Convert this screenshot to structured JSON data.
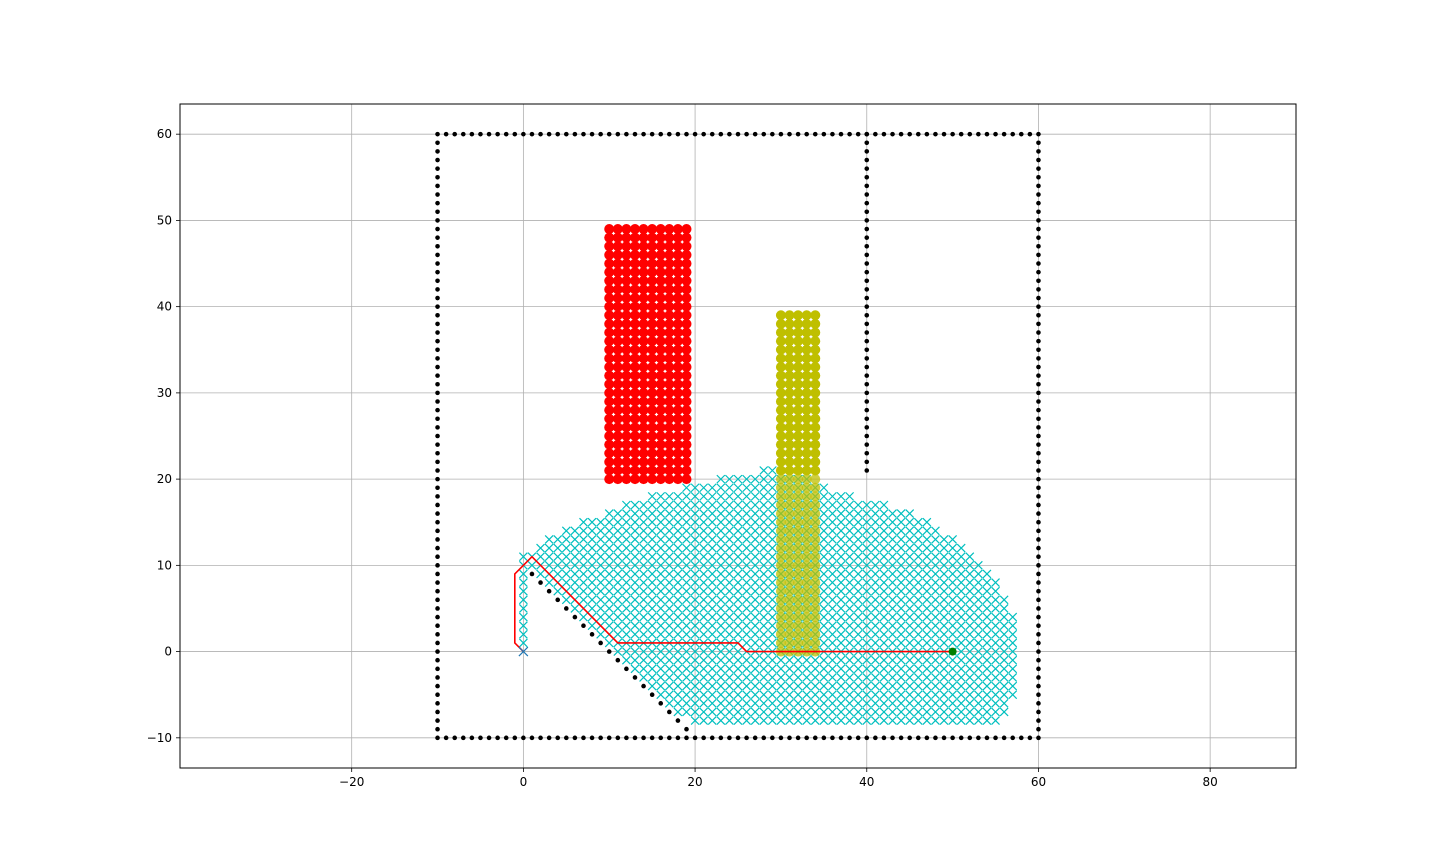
{
  "chart_data": {
    "type": "scatter",
    "title": "",
    "xlabel": "",
    "ylabel": "",
    "xlim": [
      -40,
      90
    ],
    "ylim": [
      -13.5,
      63.5
    ],
    "grid": true,
    "x_ticks": [
      -20,
      0,
      20,
      40,
      60,
      80
    ],
    "y_ticks": [
      -10,
      0,
      10,
      20,
      30,
      40,
      50,
      60
    ],
    "x_tick_labels": [
      "−20",
      "0",
      "20",
      "40",
      "60",
      "80"
    ],
    "y_tick_labels": [
      "−10",
      "0",
      "10",
      "20",
      "30",
      "40",
      "50",
      "60"
    ],
    "colors": {
      "obstacle": "#000000",
      "red_zone": "#ff0000",
      "yellow_zone": "#bfbf00",
      "explored": "#00bfbf",
      "path": "#ff0000",
      "start": "#1f77b4",
      "goal": "#008000",
      "grid": "#b0b0b0"
    },
    "obstacles": {
      "description_marker": "black dots",
      "boundary_box": {
        "x_min": -10,
        "x_max": 60,
        "y_min": -10,
        "y_max": 60
      },
      "inner_wall": {
        "x": 40,
        "y_from": 21,
        "y_to": 60
      },
      "diagonal_wall": {
        "from": [
          1,
          9
        ],
        "to": [
          19,
          -9
        ]
      }
    },
    "red_zone": {
      "x_from": 10,
      "x_to": 19,
      "y_from": 20,
      "y_to": 49
    },
    "yellow_zone": {
      "x_from": 30,
      "x_to": 34,
      "y_from": 0,
      "y_to": 39
    },
    "explored_region": {
      "marker": "x",
      "row_extents": [
        {
          "y": -8,
          "x_from": 20,
          "x_to": 55
        },
        {
          "y": -7,
          "x_from": 18,
          "x_to": 56
        },
        {
          "y": -6,
          "x_from": 17,
          "x_to": 56
        },
        {
          "y": -5,
          "x_from": 16,
          "x_to": 57
        },
        {
          "y": -4,
          "x_from": 15,
          "x_to": 57
        },
        {
          "y": -3,
          "x_from": 14,
          "x_to": 57
        },
        {
          "y": -2,
          "x_from": 13,
          "x_to": 57
        },
        {
          "y": -1,
          "x_from": 12,
          "x_to": 57
        },
        {
          "y": 0,
          "x_from": 11,
          "x_to": 57
        },
        {
          "y": 1,
          "x_from": 10,
          "x_to": 57
        },
        {
          "y": 2,
          "x_from": 9,
          "x_to": 57
        },
        {
          "y": 3,
          "x_from": 8,
          "x_to": 57
        },
        {
          "y": 4,
          "x_from": 7,
          "x_to": 57
        },
        {
          "y": 5,
          "x_from": 6,
          "x_to": 56
        },
        {
          "y": 6,
          "x_from": 5,
          "x_to": 56
        },
        {
          "y": 7,
          "x_from": 4,
          "x_to": 55
        },
        {
          "y": 8,
          "x_from": 3,
          "x_to": 55
        },
        {
          "y": 9,
          "x_from": 2,
          "x_to": 54
        },
        {
          "y": 10,
          "x_from": 1,
          "x_to": 53
        },
        {
          "y": 11,
          "x_from": 0,
          "x_to": 52
        },
        {
          "y": 12,
          "x_from": 2,
          "x_to": 51
        },
        {
          "y": 13,
          "x_from": 3,
          "x_to": 50
        },
        {
          "y": 14,
          "x_from": 5,
          "x_to": 48
        },
        {
          "y": 15,
          "x_from": 7,
          "x_to": 47
        },
        {
          "y": 16,
          "x_from": 10,
          "x_to": 45
        },
        {
          "y": 17,
          "x_from": 12,
          "x_to": 42
        },
        {
          "y": 18,
          "x_from": 15,
          "x_to": 38
        },
        {
          "y": 19,
          "x_from": 19,
          "x_to": 35
        },
        {
          "y": 20,
          "x_from": 23,
          "x_to": 33
        },
        {
          "y": 21,
          "x_from": 28,
          "x_to": 29
        }
      ],
      "left_strip": {
        "x": 0,
        "y_from": 1,
        "y_to": 10
      }
    },
    "path": {
      "x": [
        0,
        -1,
        -1,
        1,
        11,
        25,
        26,
        50
      ],
      "y": [
        0,
        1,
        9,
        11,
        1,
        1,
        0,
        0
      ]
    },
    "start": {
      "x": 0,
      "y": 0,
      "marker": "x"
    },
    "goal": {
      "x": 50,
      "y": 0,
      "marker": "o"
    }
  }
}
